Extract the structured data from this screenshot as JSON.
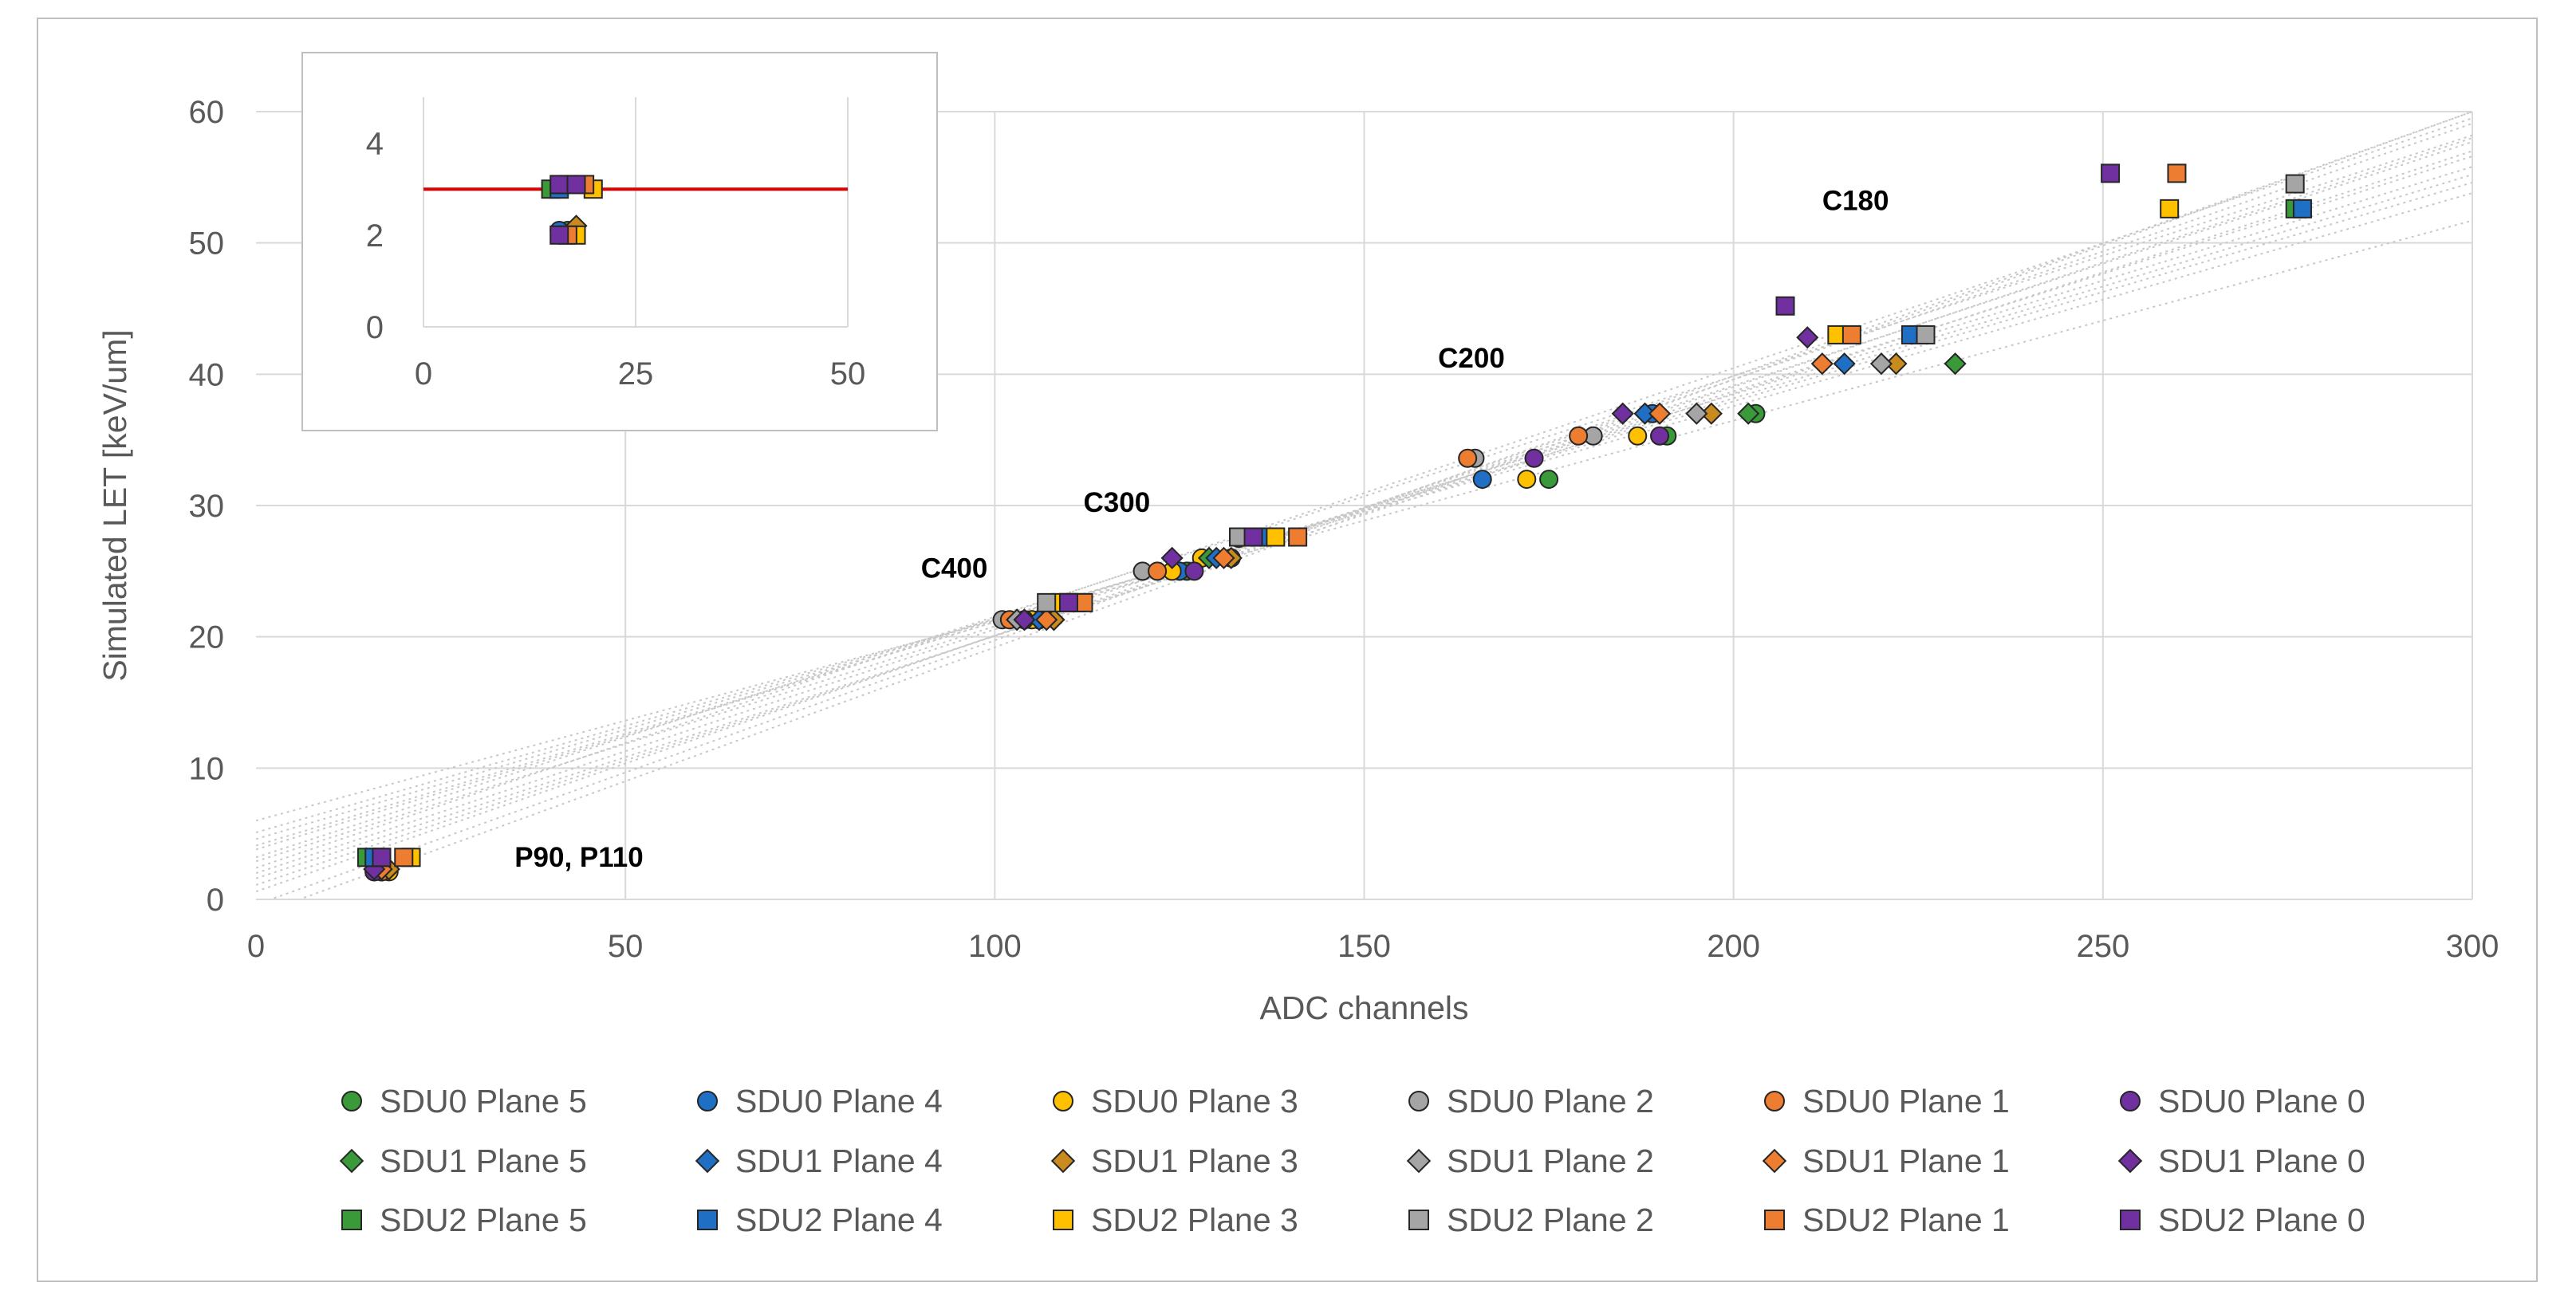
{
  "chart_data": {
    "type": "scatter",
    "title": "",
    "xlabel": "ADC channels",
    "ylabel": "Simulated LET [keV/um]",
    "xlim": [
      0,
      300
    ],
    "ylim": [
      0,
      60
    ],
    "x_ticks": [
      "0",
      "50",
      "100",
      "150",
      "200",
      "250",
      "300"
    ],
    "y_ticks": [
      "0",
      "10",
      "20",
      "30",
      "40",
      "50",
      "60"
    ],
    "grid": true,
    "legend_position": "bottom",
    "annotations": [
      {
        "text": "P90, P110",
        "x": 35,
        "y": 2.5
      },
      {
        "text": "C400",
        "x": 90,
        "y": 24.5
      },
      {
        "text": "C300",
        "x": 112,
        "y": 29.5
      },
      {
        "text": "C200",
        "x": 160,
        "y": 40.5
      },
      {
        "text": "C180",
        "x": 212,
        "y": 52.5
      }
    ],
    "series": [
      {
        "name": "SDU0 Plane 5",
        "marker": "circle",
        "color": "#3a9a3a",
        "points": [
          [
            17,
            2.1
          ],
          [
            106,
            21.3
          ],
          [
            126,
            25
          ],
          [
            133,
            27.5
          ],
          [
            175,
            32
          ],
          [
            191,
            35.3
          ],
          [
            203,
            37
          ]
        ]
      },
      {
        "name": "SDU0 Plane 4",
        "marker": "circle",
        "color": "#1f6fc5",
        "points": [
          [
            16,
            2.1
          ],
          [
            106,
            21.3
          ],
          [
            125,
            25
          ],
          [
            132,
            26
          ],
          [
            166,
            32
          ],
          [
            189,
            37
          ]
        ]
      },
      {
        "name": "SDU0 Plane 3",
        "marker": "circle",
        "color": "#ffc000",
        "points": [
          [
            18,
            2.1
          ],
          [
            105,
            21.3
          ],
          [
            124,
            25
          ],
          [
            128,
            26
          ],
          [
            172,
            32
          ],
          [
            187,
            35.3
          ]
        ]
      },
      {
        "name": "SDU0 Plane 2",
        "marker": "circle",
        "color": "#a5a5a5",
        "points": [
          [
            17,
            2.1
          ],
          [
            101,
            21.3
          ],
          [
            120,
            25
          ],
          [
            165,
            33.6
          ],
          [
            181,
            35.3
          ]
        ]
      },
      {
        "name": "SDU0 Plane 1",
        "marker": "circle",
        "color": "#ed7d31",
        "points": [
          [
            17,
            2.1
          ],
          [
            102,
            21.3
          ],
          [
            122,
            25
          ],
          [
            164,
            33.6
          ],
          [
            179,
            35.3
          ]
        ]
      },
      {
        "name": "SDU0 Plane 0",
        "marker": "circle",
        "color": "#7030a0",
        "points": [
          [
            16,
            2.1
          ],
          [
            104,
            21.3
          ],
          [
            127,
            25
          ],
          [
            173,
            33.6
          ],
          [
            190,
            35.3
          ]
        ]
      },
      {
        "name": "SDU1 Plane 5",
        "marker": "diamond",
        "color": "#3a9a3a",
        "points": [
          [
            18,
            2.3
          ],
          [
            108,
            21.3
          ],
          [
            129,
            26
          ],
          [
            202,
            37
          ],
          [
            230,
            40.8
          ]
        ]
      },
      {
        "name": "SDU1 Plane 4",
        "marker": "diamond",
        "color": "#1f6fc5",
        "points": [
          [
            17,
            2.3
          ],
          [
            106,
            21.3
          ],
          [
            130,
            26
          ],
          [
            188,
            37
          ],
          [
            215,
            40.8
          ]
        ]
      },
      {
        "name": "SDU1 Plane 3",
        "marker": "diamond",
        "color": "#c98a1e",
        "points": [
          [
            18,
            2.3
          ],
          [
            108,
            21.3
          ],
          [
            132,
            26
          ],
          [
            197,
            37
          ],
          [
            222,
            40.8
          ]
        ]
      },
      {
        "name": "SDU1 Plane 2",
        "marker": "diamond",
        "color": "#a5a5a5",
        "points": [
          [
            17,
            2.3
          ],
          [
            103,
            21.3
          ],
          [
            195,
            37
          ],
          [
            220,
            40.8
          ]
        ]
      },
      {
        "name": "SDU1 Plane 1",
        "marker": "diamond",
        "color": "#ed7d31",
        "points": [
          [
            17,
            2.3
          ],
          [
            107,
            21.3
          ],
          [
            131,
            26
          ],
          [
            190,
            37
          ],
          [
            212,
            40.8
          ]
        ]
      },
      {
        "name": "SDU1 Plane 0",
        "marker": "diamond",
        "color": "#7030a0",
        "points": [
          [
            16,
            2.3
          ],
          [
            104,
            21.3
          ],
          [
            124,
            26
          ],
          [
            185,
            37
          ],
          [
            210,
            42.8
          ]
        ]
      },
      {
        "name": "SDU2 Plane 5",
        "marker": "square",
        "color": "#3a9a3a",
        "points": [
          [
            15,
            3.2
          ],
          [
            111,
            22.6
          ],
          [
            137,
            27.6
          ],
          [
            225,
            43
          ],
          [
            276,
            52.6
          ]
        ]
      },
      {
        "name": "SDU2 Plane 4",
        "marker": "square",
        "color": "#1f6fc5",
        "points": [
          [
            16,
            3.2
          ],
          [
            110,
            22.6
          ],
          [
            136,
            27.6
          ],
          [
            224,
            43
          ],
          [
            277,
            52.6
          ]
        ]
      },
      {
        "name": "SDU2 Plane 3",
        "marker": "square",
        "color": "#ffc000",
        "points": [
          [
            21,
            3.2
          ],
          [
            109,
            22.6
          ],
          [
            138,
            27.6
          ],
          [
            214,
            43
          ],
          [
            259,
            52.6
          ]
        ]
      },
      {
        "name": "SDU2 Plane 2",
        "marker": "square",
        "color": "#a5a5a5",
        "points": [
          [
            17,
            3.2
          ],
          [
            107,
            22.6
          ],
          [
            133,
            27.6
          ],
          [
            226,
            43
          ],
          [
            276,
            54.5
          ]
        ]
      },
      {
        "name": "SDU2 Plane 1",
        "marker": "square",
        "color": "#ed7d31",
        "points": [
          [
            20,
            3.2
          ],
          [
            112,
            22.6
          ],
          [
            141,
            27.6
          ],
          [
            216,
            43
          ],
          [
            260,
            55.3
          ]
        ]
      },
      {
        "name": "SDU2 Plane 0",
        "marker": "square",
        "color": "#7030a0",
        "points": [
          [
            17,
            3.2
          ],
          [
            110,
            22.6
          ],
          [
            135,
            27.6
          ],
          [
            207,
            45.2
          ],
          [
            251,
            55.3
          ]
        ]
      }
    ],
    "fit_lines": [
      [
        [
          0,
          1.6
        ],
        [
          300,
          57.0
        ]
      ],
      [
        [
          0,
          2.4
        ],
        [
          300,
          59.5
        ]
      ],
      [
        [
          0,
          6.0
        ],
        [
          300,
          51.7
        ]
      ],
      [
        [
          0,
          -1.2
        ],
        [
          300,
          60.0
        ]
      ],
      [
        [
          0,
          3.2
        ],
        [
          300,
          58.2
        ]
      ],
      [
        [
          0,
          4.6
        ],
        [
          300,
          54.6
        ]
      ],
      [
        [
          0,
          0.6
        ],
        [
          300,
          59.1
        ]
      ],
      [
        [
          0,
          5.1
        ],
        [
          300,
          53.8
        ]
      ],
      [
        [
          0,
          1.1
        ],
        [
          300,
          58.0
        ]
      ],
      [
        [
          0,
          -0.4
        ],
        [
          300,
          60.0
        ]
      ],
      [
        [
          0,
          2.0
        ],
        [
          300,
          57.7
        ]
      ],
      [
        [
          0,
          3.8
        ],
        [
          300,
          55.8
        ]
      ],
      [
        [
          0,
          2.9
        ],
        [
          300,
          56.6
        ]
      ],
      [
        [
          0,
          4.1
        ],
        [
          300,
          55.2
        ]
      ]
    ],
    "inset": {
      "xlim": [
        0,
        50
      ],
      "ylim": [
        0,
        5
      ],
      "x_ticks": [
        "0",
        "25",
        "50"
      ],
      "y_ticks": [
        "0",
        "2",
        "4"
      ],
      "reference_line_y": 3.0,
      "reference_line_color": "#e00000",
      "points": [
        {
          "marker": "square",
          "color": "#3a9a3a",
          "x": 15,
          "y": 3.0
        },
        {
          "marker": "square",
          "color": "#1f6fc5",
          "x": 16,
          "y": 3.0
        },
        {
          "marker": "square",
          "color": "#a5a5a5",
          "x": 17,
          "y": 3.1
        },
        {
          "marker": "square",
          "color": "#ffc000",
          "x": 20,
          "y": 3.0
        },
        {
          "marker": "square",
          "color": "#ed7d31",
          "x": 19,
          "y": 3.1
        },
        {
          "marker": "square",
          "color": "#7030a0",
          "x": 16,
          "y": 3.1
        },
        {
          "marker": "square",
          "color": "#7030a0",
          "x": 18,
          "y": 3.1
        },
        {
          "marker": "circle",
          "color": "#3a9a3a",
          "x": 17,
          "y": 2.1
        },
        {
          "marker": "circle",
          "color": "#1f6fc5",
          "x": 16,
          "y": 2.1
        },
        {
          "marker": "diamond",
          "color": "#c98a1e",
          "x": 18,
          "y": 2.2
        },
        {
          "marker": "square",
          "color": "#ffc000",
          "x": 18,
          "y": 2.0
        },
        {
          "marker": "square",
          "color": "#ed7d31",
          "x": 17,
          "y": 2.0
        },
        {
          "marker": "square",
          "color": "#7030a0",
          "x": 16,
          "y": 2.0
        }
      ]
    }
  }
}
